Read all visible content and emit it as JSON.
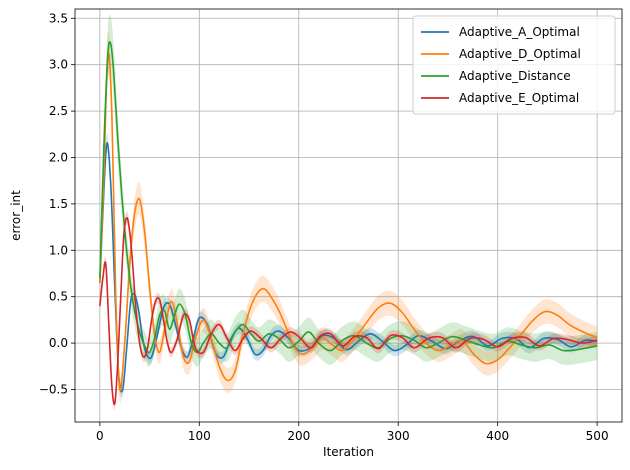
{
  "chart_data": {
    "type": "line",
    "title": "",
    "xlabel": "Iteration",
    "ylabel": "error_int",
    "xlim": [
      -25,
      525
    ],
    "ylim": [
      -0.85,
      3.6
    ],
    "xticks": [
      0,
      100,
      200,
      300,
      400,
      500
    ],
    "yticks": [
      -0.5,
      0.0,
      0.5,
      1.0,
      1.5,
      2.0,
      2.5,
      3.0,
      3.5
    ],
    "grid": true,
    "legend": "top-right",
    "series": [
      {
        "name": "Adaptive_A_Optimal",
        "color": "#1f77b4",
        "x": [
          0,
          3,
          7,
          11,
          15,
          19,
          23,
          27,
          31,
          35,
          39,
          43,
          47,
          52,
          58,
          64,
          70,
          76,
          82,
          88,
          94,
          100,
          108,
          116,
          124,
          132,
          140,
          148,
          156,
          164,
          172,
          180,
          190,
          200,
          212,
          224,
          236,
          248,
          260,
          272,
          284,
          296,
          308,
          320,
          334,
          348,
          362,
          376,
          390,
          404,
          418,
          432,
          446,
          460,
          474,
          488,
          500
        ],
        "y": [
          0.65,
          1.4,
          2.15,
          1.7,
          0.6,
          -0.35,
          -0.5,
          -0.05,
          0.45,
          0.52,
          0.35,
          0.05,
          -0.12,
          -0.15,
          0.1,
          0.38,
          0.42,
          0.2,
          -0.05,
          -0.15,
          0.05,
          0.27,
          0.2,
          -0.1,
          -0.15,
          0.05,
          0.16,
          0.05,
          -0.12,
          -0.08,
          0.08,
          0.13,
          0.05,
          -0.08,
          -0.05,
          0.08,
          0.05,
          -0.07,
          0.02,
          0.1,
          0.02,
          -0.08,
          -0.02,
          0.08,
          0.02,
          -0.06,
          0.03,
          0.07,
          -0.03,
          0.05,
          0.05,
          -0.05,
          0.05,
          0.04,
          -0.04,
          0.03,
          0.02
        ],
        "band": 0.06
      },
      {
        "name": "Adaptive_D_Optimal",
        "color": "#ff7f0e",
        "x": [
          0,
          4,
          8,
          12,
          16,
          20,
          25,
          30,
          35,
          40,
          45,
          50,
          55,
          60,
          66,
          72,
          78,
          84,
          90,
          96,
          104,
          112,
          120,
          128,
          136,
          144,
          152,
          160,
          166,
          172,
          180,
          188,
          196,
          204,
          214,
          224,
          234,
          244,
          256,
          268,
          280,
          292,
          304,
          316,
          328,
          340,
          352,
          364,
          376,
          388,
          400,
          412,
          424,
          436,
          448,
          460,
          472,
          486,
          500
        ],
        "y": [
          0.65,
          1.8,
          3.1,
          2.5,
          0.5,
          -0.5,
          0.0,
          0.85,
          1.4,
          1.55,
          1.2,
          0.6,
          0.1,
          -0.1,
          0.2,
          0.45,
          0.2,
          -0.15,
          -0.2,
          0.05,
          0.25,
          0.05,
          -0.25,
          -0.4,
          -0.3,
          0.1,
          0.4,
          0.56,
          0.58,
          0.5,
          0.35,
          0.15,
          -0.05,
          -0.12,
          -0.05,
          0.05,
          -0.02,
          -0.08,
          0.05,
          0.22,
          0.38,
          0.43,
          0.33,
          0.15,
          0.0,
          -0.08,
          -0.03,
          0.03,
          -0.12,
          -0.22,
          -0.18,
          -0.05,
          0.1,
          0.25,
          0.34,
          0.3,
          0.2,
          0.12,
          0.06
        ],
        "band": 0.12
      },
      {
        "name": "Adaptive_Distance",
        "color": "#2ca02c",
        "x": [
          0,
          4,
          8,
          11,
          14,
          18,
          22,
          26,
          30,
          34,
          38,
          42,
          46,
          50,
          55,
          60,
          65,
          70,
          75,
          80,
          86,
          92,
          98,
          104,
          112,
          120,
          128,
          136,
          144,
          152,
          160,
          170,
          180,
          190,
          200,
          210,
          220,
          232,
          244,
          256,
          268,
          280,
          292,
          304,
          316,
          328,
          340,
          354,
          368,
          382,
          396,
          410,
          424,
          438,
          452,
          466,
          480,
          500
        ],
        "y": [
          0.7,
          2.1,
          3.1,
          3.22,
          2.9,
          2.2,
          1.6,
          1.1,
          0.7,
          0.4,
          0.2,
          0.05,
          -0.05,
          -0.1,
          0.05,
          0.3,
          0.35,
          0.15,
          0.3,
          0.42,
          0.3,
          0.0,
          -0.1,
          0.0,
          0.1,
          0.0,
          -0.05,
          0.12,
          0.2,
          0.1,
          0.02,
          0.1,
          0.05,
          -0.05,
          0.02,
          0.12,
          0.0,
          -0.08,
          0.03,
          0.08,
          0.0,
          -0.05,
          0.05,
          0.08,
          0.03,
          -0.05,
          0.0,
          0.07,
          0.03,
          -0.02,
          -0.05,
          0.02,
          -0.02,
          -0.05,
          -0.02,
          -0.08,
          -0.07,
          -0.03
        ],
        "band": 0.15
      },
      {
        "name": "Adaptive_E_Optimal",
        "color": "#d62728",
        "x": [
          0,
          3,
          6,
          9,
          12,
          15,
          18,
          21,
          24,
          27,
          30,
          33,
          36,
          40,
          44,
          48,
          52,
          56,
          60,
          64,
          68,
          72,
          78,
          84,
          90,
          96,
          104,
          112,
          120,
          128,
          136,
          144,
          152,
          162,
          172,
          182,
          192,
          202,
          212,
          222,
          232,
          244,
          256,
          268,
          280,
          292,
          304,
          316,
          330,
          344,
          358,
          372,
          386,
          400,
          414,
          428,
          442,
          456,
          470,
          485,
          500
        ],
        "y": [
          0.4,
          0.7,
          0.85,
          0.2,
          -0.45,
          -0.65,
          -0.2,
          0.5,
          1.15,
          1.35,
          1.2,
          0.85,
          0.4,
          0.0,
          -0.15,
          -0.05,
          0.25,
          0.45,
          0.47,
          0.25,
          0.0,
          -0.1,
          0.05,
          0.3,
          0.25,
          -0.05,
          -0.1,
          0.1,
          0.2,
          0.05,
          -0.08,
          0.05,
          0.13,
          0.05,
          -0.05,
          0.05,
          0.12,
          0.05,
          -0.05,
          0.08,
          0.1,
          -0.03,
          0.07,
          0.06,
          -0.06,
          0.08,
          0.06,
          -0.05,
          0.05,
          0.06,
          -0.05,
          0.05,
          0.04,
          -0.04,
          0.05,
          0.06,
          -0.03,
          0.05,
          0.04,
          0.0,
          0.03
        ],
        "band": 0.05
      }
    ]
  }
}
